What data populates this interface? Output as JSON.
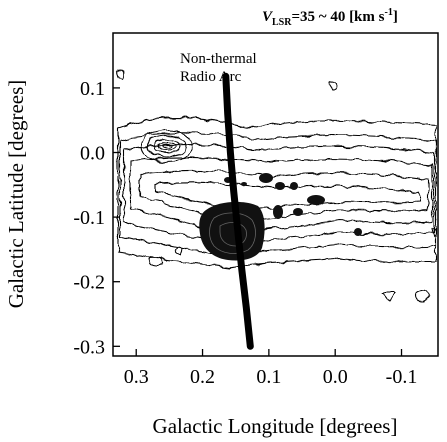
{
  "chart_data": {
    "type": "contour",
    "header": {
      "var": "V",
      "var_sub": "LSR",
      "range": "=35 ~ 40 [km s",
      "exp": "-1",
      "close": "]"
    },
    "xlabel": "Galactic Longitude  [degrees]",
    "ylabel": "Galactic Latitude  [degrees]",
    "xlim": [
      0.335,
      -0.155
    ],
    "ylim": [
      -0.315,
      0.185
    ],
    "x_ticks": [
      {
        "value": 0.3,
        "label": "0.3"
      },
      {
        "value": 0.2,
        "label": "0.2"
      },
      {
        "value": 0.1,
        "label": "0.1"
      },
      {
        "value": 0.0,
        "label": "0.0"
      },
      {
        "value": -0.1,
        "label": "-0.1"
      }
    ],
    "y_ticks": [
      {
        "value": 0.1,
        "label": "0.1"
      },
      {
        "value": 0.0,
        "label": "0.0"
      },
      {
        "value": -0.1,
        "label": "-0.1"
      },
      {
        "value": -0.2,
        "label": "-0.2"
      },
      {
        "value": -0.3,
        "label": "-0.3"
      }
    ],
    "annotation": {
      "lines": [
        "Non-thermal",
        "Radio Arc"
      ]
    },
    "radio_arc": {
      "l": [
        0.165,
        0.162,
        0.158,
        0.153,
        0.147,
        0.141,
        0.134,
        0.128
      ],
      "b": [
        0.118,
        0.06,
        0.0,
        -0.06,
        -0.12,
        -0.18,
        -0.24,
        -0.3
      ]
    },
    "contour_features": [
      {
        "name": "main-emission-band",
        "center_l": 0.09,
        "center_b": -0.06,
        "levels": 6
      },
      {
        "name": "compact-source-upper-left",
        "center_l": 0.265,
        "center_b": 0.03,
        "levels": 5
      },
      {
        "name": "bright-clump-center",
        "center_l": 0.15,
        "center_b": -0.12,
        "levels": 12
      },
      {
        "name": "clump-right",
        "center_l": 0.04,
        "center_b": -0.05,
        "levels": 3
      },
      {
        "name": "clump-far-right",
        "center_l": -0.02,
        "center_b": -0.12,
        "levels": 2
      },
      {
        "name": "small-loop-bottom-right",
        "center_l": -0.07,
        "center_b": -0.2,
        "levels": 1
      }
    ]
  }
}
